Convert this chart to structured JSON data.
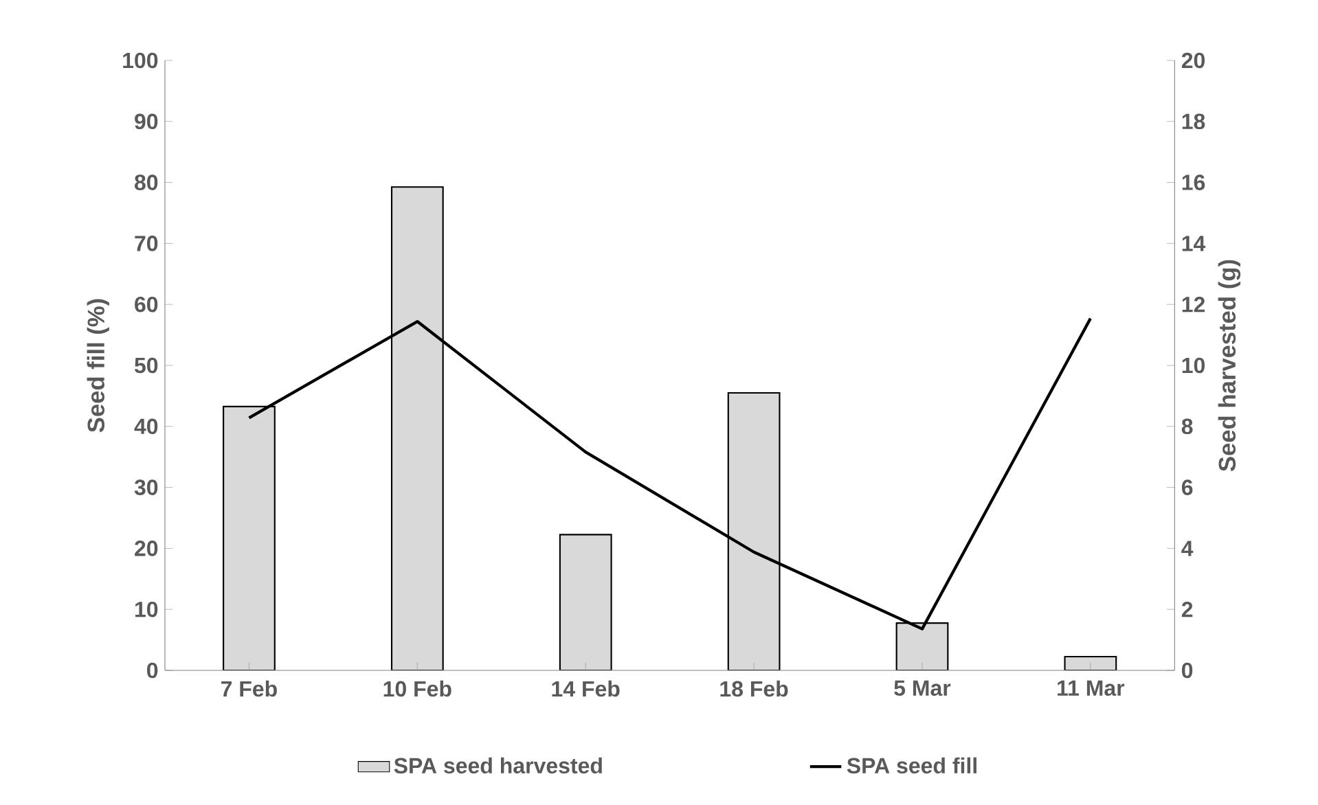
{
  "chart_data": {
    "type": "bar",
    "ylabel": "Seed fill (%)",
    "y2label": "Seed harvested (g)",
    "categories": [
      "7 Feb",
      "10 Feb",
      "14 Feb",
      "18 Feb",
      "5 Mar",
      "11 Mar"
    ],
    "series": [
      {
        "name": "SPA seed harvested",
        "axis": "y2",
        "color": "#d9d9d9",
        "values": [
          8.65,
          15.85,
          4.45,
          9.1,
          1.55,
          0.45
        ]
      },
      {
        "name": "SPA seed fill",
        "type": "line",
        "axis": "y",
        "color": "#000000",
        "values": [
          41.4,
          57.2,
          35.8,
          19.4,
          6.8,
          57.7
        ]
      }
    ],
    "ylim": [
      0,
      100
    ],
    "yticks": [
      0,
      10,
      20,
      30,
      40,
      50,
      60,
      70,
      80,
      90,
      100
    ],
    "y2lim": [
      0,
      20
    ],
    "y2ticks": [
      0,
      2,
      4,
      6,
      8,
      10,
      12,
      14,
      16,
      18,
      20
    ],
    "grid": false,
    "legend": "bottom",
    "marker": "none",
    "line_style": "solid"
  }
}
